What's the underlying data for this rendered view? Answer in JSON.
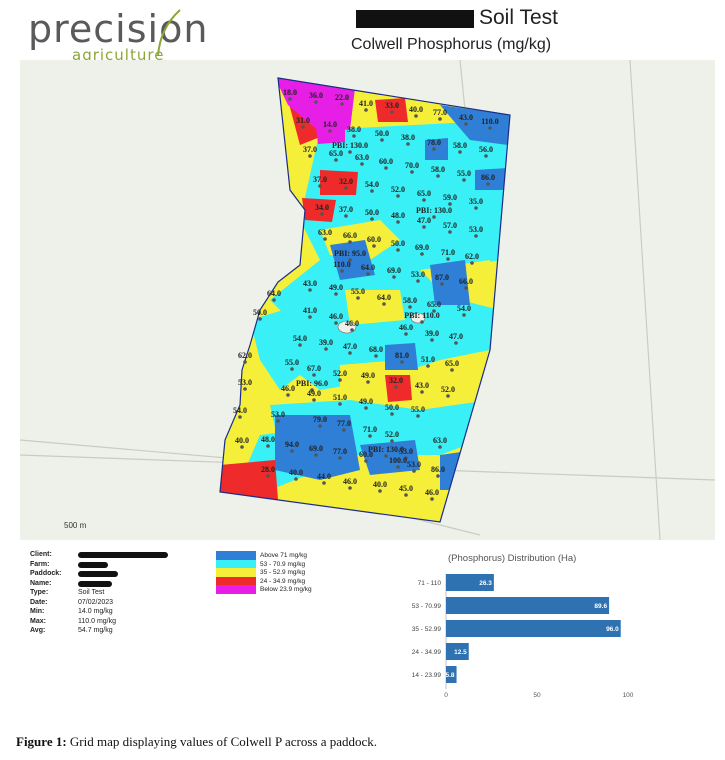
{
  "header": {
    "logo_main": "precision",
    "logo_sub": "agriculture",
    "title": "Soil Test",
    "subtitle": "Colwell Phosphorus (mg/kg)"
  },
  "map": {
    "scale_label": "500 m",
    "labels": [
      {
        "t": "18.0",
        "c": "magenta"
      },
      {
        "t": "36.0",
        "c": "magenta"
      },
      {
        "t": "22.0",
        "c": "magenta"
      },
      {
        "t": "41.0",
        "c": "yellow"
      },
      {
        "t": "33.0",
        "c": "red"
      },
      {
        "t": "40.0",
        "c": "yellow"
      },
      {
        "t": "77.0",
        "c": "blue"
      },
      {
        "t": "43.0",
        "c": "yellow"
      },
      {
        "t": "110.0",
        "c": "blue"
      },
      {
        "t": "31.0",
        "c": "red"
      },
      {
        "t": "14.0",
        "c": "magenta"
      },
      {
        "t": "38.0",
        "c": "yellow"
      },
      {
        "t": "50.0",
        "c": "yellow"
      },
      {
        "t": "38.0",
        "c": "yellow"
      },
      {
        "t": "78.0",
        "c": "blue"
      },
      {
        "t": "58.0",
        "c": "cyan"
      },
      {
        "t": "56.0",
        "c": "cyan"
      },
      {
        "t": "37.0",
        "c": "yellow"
      },
      {
        "t": "PBI: 130.0",
        "c": "cyan"
      },
      {
        "t": "65.0",
        "c": "cyan"
      },
      {
        "t": "63.0",
        "c": "cyan"
      },
      {
        "t": "60.0",
        "c": "cyan"
      },
      {
        "t": "70.0",
        "c": "cyan"
      },
      {
        "t": "58.0",
        "c": "cyan"
      },
      {
        "t": "55.0",
        "c": "cyan"
      },
      {
        "t": "86.0",
        "c": "blue"
      },
      {
        "t": "37.0",
        "c": "yellow"
      },
      {
        "t": "32.0",
        "c": "red"
      },
      {
        "t": "54.0",
        "c": "cyan"
      },
      {
        "t": "52.0",
        "c": "yellow"
      },
      {
        "t": "65.0",
        "c": "cyan"
      },
      {
        "t": "59.0",
        "c": "cyan"
      },
      {
        "t": "35.0",
        "c": "yellow"
      },
      {
        "t": "34.0",
        "c": "red"
      },
      {
        "t": "37.0",
        "c": "yellow"
      },
      {
        "t": "50.0",
        "c": "yellow"
      },
      {
        "t": "48.0",
        "c": "yellow"
      },
      {
        "t": "PBI: 130.0",
        "c": "cyan"
      },
      {
        "t": "47.0",
        "c": "yellow"
      },
      {
        "t": "57.0",
        "c": "cyan"
      },
      {
        "t": "53.0",
        "c": "cyan"
      },
      {
        "t": "63.0",
        "c": "cyan"
      },
      {
        "t": "66.0",
        "c": "cyan"
      },
      {
        "t": "60.0",
        "c": "cyan"
      },
      {
        "t": "50.0",
        "c": "yellow"
      },
      {
        "t": "69.0",
        "c": "cyan"
      },
      {
        "t": "71.0",
        "c": "blue"
      },
      {
        "t": "62.0",
        "c": "cyan"
      },
      {
        "t": "PBI: 95.0",
        "c": "blue"
      },
      {
        "t": "110.0",
        "c": "blue"
      },
      {
        "t": "64.0",
        "c": "cyan"
      },
      {
        "t": "69.0",
        "c": "cyan"
      },
      {
        "t": "53.0",
        "c": "cyan"
      },
      {
        "t": "87.0",
        "c": "blue"
      },
      {
        "t": "66.0",
        "c": "cyan"
      },
      {
        "t": "64.0",
        "c": "cyan"
      },
      {
        "t": "43.0",
        "c": "yellow"
      },
      {
        "t": "49.0",
        "c": "yellow"
      },
      {
        "t": "55.0",
        "c": "cyan"
      },
      {
        "t": "64.0",
        "c": "cyan"
      },
      {
        "t": "58.0",
        "c": "cyan"
      },
      {
        "t": "65.0",
        "c": "cyan"
      },
      {
        "t": "54.0",
        "c": "cyan"
      },
      {
        "t": "50.0",
        "c": "yellow"
      },
      {
        "t": "41.0",
        "c": "yellow"
      },
      {
        "t": "46.0",
        "c": "yellow"
      },
      {
        "t": "46.0",
        "c": "yellow"
      },
      {
        "t": "46.0",
        "c": "yellow"
      },
      {
        "t": "PBI: 110.0",
        "c": "cyan"
      },
      {
        "t": "39.0",
        "c": "yellow"
      },
      {
        "t": "54.0",
        "c": "cyan"
      },
      {
        "t": "39.0",
        "c": "yellow"
      },
      {
        "t": "47.0",
        "c": "yellow"
      },
      {
        "t": "68.0",
        "c": "cyan"
      },
      {
        "t": "81.0",
        "c": "blue"
      },
      {
        "t": "51.0",
        "c": "yellow"
      },
      {
        "t": "47.0",
        "c": "yellow"
      },
      {
        "t": "62.0",
        "c": "cyan"
      },
      {
        "t": "55.0",
        "c": "cyan"
      },
      {
        "t": "67.0",
        "c": "cyan"
      },
      {
        "t": "52.0",
        "c": "yellow"
      },
      {
        "t": "49.0",
        "c": "yellow"
      },
      {
        "t": "65.0",
        "c": "cyan"
      },
      {
        "t": "53.0",
        "c": "cyan"
      },
      {
        "t": "46.0",
        "c": "yellow"
      },
      {
        "t": "PBI: 96.0",
        "c": "cyan"
      },
      {
        "t": "49.0",
        "c": "yellow"
      },
      {
        "t": "32.0",
        "c": "red"
      },
      {
        "t": "43.0",
        "c": "yellow"
      },
      {
        "t": "52.0",
        "c": "yellow"
      },
      {
        "t": "54.0",
        "c": "cyan"
      },
      {
        "t": "51.0",
        "c": "yellow"
      },
      {
        "t": "49.0",
        "c": "yellow"
      },
      {
        "t": "50.0",
        "c": "yellow"
      },
      {
        "t": "55.0",
        "c": "cyan"
      },
      {
        "t": "53.0",
        "c": "cyan"
      },
      {
        "t": "79.0",
        "c": "blue"
      },
      {
        "t": "77.0",
        "c": "blue"
      },
      {
        "t": "71.0",
        "c": "blue"
      },
      {
        "t": "52.0",
        "c": "yellow"
      },
      {
        "t": "40.0",
        "c": "yellow"
      },
      {
        "t": "48.0",
        "c": "yellow"
      },
      {
        "t": "94.0",
        "c": "blue"
      },
      {
        "t": "69.0",
        "c": "cyan"
      },
      {
        "t": "77.0",
        "c": "blue"
      },
      {
        "t": "60.0",
        "c": "cyan"
      },
      {
        "t": "PBI: 130.0",
        "c": "blue"
      },
      {
        "t": "53.0",
        "c": "cyan"
      },
      {
        "t": "63.0",
        "c": "cyan"
      },
      {
        "t": "100.0",
        "c": "blue"
      },
      {
        "t": "53.0",
        "c": "cyan"
      },
      {
        "t": "86.0",
        "c": "blue"
      },
      {
        "t": "28.0",
        "c": "red"
      },
      {
        "t": "40.0",
        "c": "yellow"
      },
      {
        "t": "44.0",
        "c": "yellow"
      },
      {
        "t": "46.0",
        "c": "yellow"
      },
      {
        "t": "40.0",
        "c": "yellow"
      },
      {
        "t": "45.0",
        "c": "yellow"
      },
      {
        "t": "46.0",
        "c": "yellow"
      }
    ]
  },
  "info": [
    {
      "key": "Client:",
      "value": "",
      "redacted": true
    },
    {
      "key": "Farm:",
      "value": "",
      "redacted": true
    },
    {
      "key": "Paddock:",
      "value": "",
      "redacted": true
    },
    {
      "key": "Name:",
      "value": "",
      "redacted": true
    },
    {
      "key": "Type:",
      "value": "Soil Test",
      "redacted": false
    },
    {
      "key": "Date:",
      "value": "07/02/2023",
      "redacted": false
    },
    {
      "key": "Min:",
      "value": "14.0 mg/kg",
      "redacted": false
    },
    {
      "key": "Max:",
      "value": "110.0 mg/kg",
      "redacted": false
    },
    {
      "key": "Avg:",
      "value": "54.7 mg/kg",
      "redacted": false
    }
  ],
  "legend": [
    {
      "label": "Above 71 mg/kg",
      "color": "#2f7fd6"
    },
    {
      "label": "53 - 70.9 mg/kg",
      "color": "#38f0f5"
    },
    {
      "label": "35 - 52.9 mg/kg",
      "color": "#f5ef3a"
    },
    {
      "label": "24 - 34.9 mg/kg",
      "color": "#ef2a2a"
    },
    {
      "label": "Below 23.9 mg/kg",
      "color": "#e61ee6"
    }
  ],
  "chart_data": {
    "type": "bar",
    "orientation": "horizontal",
    "title": "(Phosphorus) Distribution (Ha)",
    "categories": [
      "71 - 110",
      "53 - 70.99",
      "35 - 52.99",
      "24 - 34.99",
      "14 - 23.99"
    ],
    "values": [
      26.3,
      89.6,
      96.0,
      12.5,
      5.8
    ],
    "value_labels": [
      "26.3",
      "89.6",
      "96.0",
      "12.5",
      "5.8"
    ],
    "xlim": [
      0,
      100
    ],
    "xticks": [
      0,
      50,
      100
    ],
    "bar_color": "#2f72b2",
    "grid": false
  },
  "caption": {
    "label": "Figure 1:",
    "text": " Grid map displaying values of Colwell P across a paddock."
  },
  "colors": {
    "blue": "#2f7fd6",
    "cyan": "#38f0f5",
    "yellow": "#f5ef3a",
    "red": "#ef2a2a",
    "magenta": "#e61ee6",
    "logo_green": "#8aa836"
  }
}
